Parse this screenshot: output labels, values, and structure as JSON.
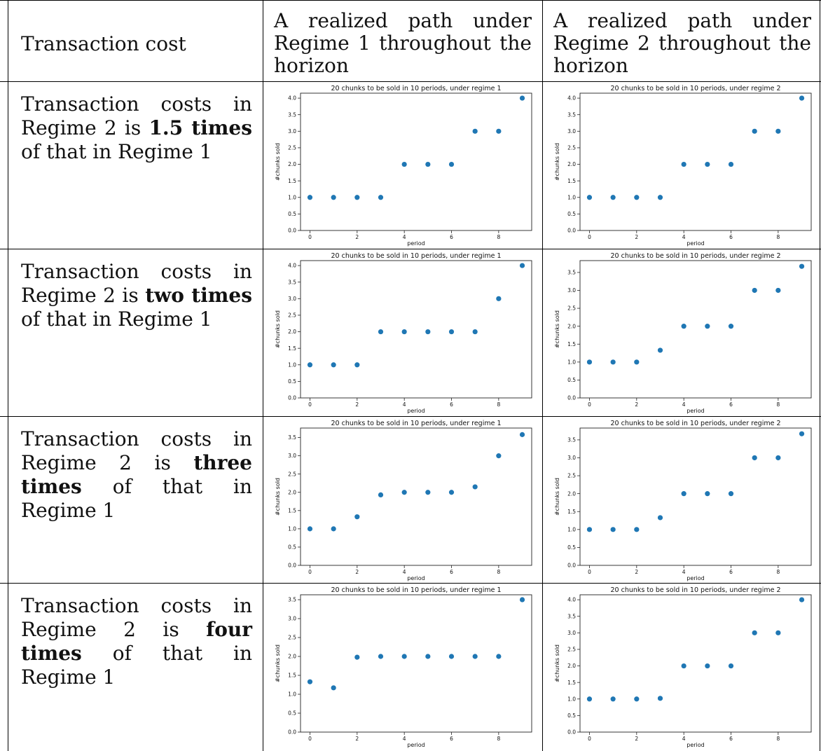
{
  "table": {
    "header": {
      "col1": "Transaction cost",
      "col2": "A realized path under Regime 1 throughout the horizon",
      "col3": "A realized path under Regime 2 throughout the horizon"
    },
    "rows": [
      {
        "prefix": "Transaction costs in",
        "middle": "Regime 2 is ",
        "bold": "1.5 times",
        "suffix": " of that in Regime 1"
      },
      {
        "prefix": "Transaction costs in",
        "middle": "Regime 2 is ",
        "bold": "two times",
        "suffix": " of that in Regime 1"
      },
      {
        "prefix": "Transaction costs in",
        "middle": "Regime 2 is ",
        "bold": "three times",
        "suffix": " of that in Regime 1"
      },
      {
        "prefix": "Transaction costs in",
        "middle": "Regime 2 is ",
        "bold": "four times",
        "suffix": " of that in Regime 1"
      }
    ]
  },
  "chart_data": [
    {
      "type": "scatter",
      "title": "20 chunks to be sold in 10 periods, under regime 1",
      "xlabel": "period",
      "ylabel": "#chunks sold",
      "x": [
        0,
        1,
        2,
        3,
        4,
        5,
        6,
        7,
        8,
        9
      ],
      "y": [
        1,
        1,
        1,
        1,
        2,
        2,
        2,
        3,
        3,
        4
      ],
      "xticks": [
        0,
        2,
        4,
        6,
        8
      ],
      "yticks": [
        0.0,
        0.5,
        1.0,
        1.5,
        2.0,
        2.5,
        3.0,
        3.5,
        4.0
      ],
      "xlim": [
        -0.4,
        9.4
      ],
      "ylim": [
        0,
        4.15
      ],
      "color": "#1f77b4"
    },
    {
      "type": "scatter",
      "title": "20 chunks to be sold in 10 periods, under regime 2",
      "xlabel": "period",
      "ylabel": "#chunks sold",
      "x": [
        0,
        1,
        2,
        3,
        4,
        5,
        6,
        7,
        8,
        9
      ],
      "y": [
        1,
        1,
        1,
        1,
        2,
        2,
        2,
        3,
        3,
        4
      ],
      "xticks": [
        0,
        2,
        4,
        6,
        8
      ],
      "yticks": [
        0.0,
        0.5,
        1.0,
        1.5,
        2.0,
        2.5,
        3.0,
        3.5,
        4.0
      ],
      "xlim": [
        -0.4,
        9.4
      ],
      "ylim": [
        0,
        4.15
      ],
      "color": "#1f77b4"
    },
    {
      "type": "scatter",
      "title": "20 chunks to be sold in 10 periods, under regime 1",
      "xlabel": "period",
      "ylabel": "#chunks sold",
      "x": [
        0,
        1,
        2,
        3,
        4,
        5,
        6,
        7,
        8,
        9
      ],
      "y": [
        1,
        1,
        1,
        2,
        2,
        2,
        2,
        2,
        3,
        4
      ],
      "xticks": [
        0,
        2,
        4,
        6,
        8
      ],
      "yticks": [
        0.0,
        0.5,
        1.0,
        1.5,
        2.0,
        2.5,
        3.0,
        3.5,
        4.0
      ],
      "xlim": [
        -0.4,
        9.4
      ],
      "ylim": [
        0,
        4.15
      ],
      "color": "#1f77b4"
    },
    {
      "type": "scatter",
      "title": "20 chunks to be sold in 10 periods, under regime 2",
      "xlabel": "period",
      "ylabel": "#chunks sold",
      "x": [
        0,
        1,
        2,
        3,
        4,
        5,
        6,
        7,
        8,
        9
      ],
      "y": [
        1,
        1,
        1,
        1.33,
        2,
        2,
        2,
        3,
        3,
        3.67
      ],
      "xticks": [
        0,
        2,
        4,
        6,
        8
      ],
      "yticks": [
        0.0,
        0.5,
        1.0,
        1.5,
        2.0,
        2.5,
        3.0,
        3.5
      ],
      "xlim": [
        -0.4,
        9.4
      ],
      "ylim": [
        0,
        3.83
      ],
      "color": "#1f77b4"
    },
    {
      "type": "scatter",
      "title": "20 chunks to be sold in 10 periods, under regime 1",
      "xlabel": "period",
      "ylabel": "#chunks sold",
      "x": [
        0,
        1,
        2,
        3,
        4,
        5,
        6,
        7,
        8,
        9
      ],
      "y": [
        1,
        1,
        1.33,
        1.93,
        2,
        2,
        2,
        2.15,
        3,
        3.58
      ],
      "xticks": [
        0,
        2,
        4,
        6,
        8
      ],
      "yticks": [
        0.0,
        0.5,
        1.0,
        1.5,
        2.0,
        2.5,
        3.0,
        3.5
      ],
      "xlim": [
        -0.4,
        9.4
      ],
      "ylim": [
        0,
        3.76
      ],
      "color": "#1f77b4"
    },
    {
      "type": "scatter",
      "title": "20 chunks to be sold in 10 periods, under regime 2",
      "xlabel": "period",
      "ylabel": "#chunks sold",
      "x": [
        0,
        1,
        2,
        3,
        4,
        5,
        6,
        7,
        8,
        9
      ],
      "y": [
        1,
        1,
        1,
        1.33,
        2,
        2,
        2,
        3,
        3,
        3.67
      ],
      "xticks": [
        0,
        2,
        4,
        6,
        8
      ],
      "yticks": [
        0.0,
        0.5,
        1.0,
        1.5,
        2.0,
        2.5,
        3.0,
        3.5
      ],
      "xlim": [
        -0.4,
        9.4
      ],
      "ylim": [
        0,
        3.83
      ],
      "color": "#1f77b4"
    },
    {
      "type": "scatter",
      "title": "20 chunks to be sold in 10 periods, under regime 1",
      "xlabel": "period",
      "ylabel": "#chunks sold",
      "x": [
        0,
        1,
        2,
        3,
        4,
        5,
        6,
        7,
        8,
        9
      ],
      "y": [
        1.33,
        1.17,
        1.98,
        2,
        2,
        2,
        2,
        2,
        2,
        3.5
      ],
      "xticks": [
        0,
        2,
        4,
        6,
        8
      ],
      "yticks": [
        0.0,
        0.5,
        1.0,
        1.5,
        2.0,
        2.5,
        3.0,
        3.5
      ],
      "xlim": [
        -0.4,
        9.4
      ],
      "ylim": [
        0,
        3.63
      ],
      "color": "#1f77b4"
    },
    {
      "type": "scatter",
      "title": "20 chunks to be sold in 10 periods, under regime 2",
      "xlabel": "period",
      "ylabel": "#chunks sold",
      "x": [
        0,
        1,
        2,
        3,
        4,
        5,
        6,
        7,
        8,
        9
      ],
      "y": [
        1,
        1,
        1,
        1.02,
        2,
        2,
        2,
        3,
        3,
        4
      ],
      "xticks": [
        0,
        2,
        4,
        6,
        8
      ],
      "yticks": [
        0.0,
        0.5,
        1.0,
        1.5,
        2.0,
        2.5,
        3.0,
        3.5,
        4.0
      ],
      "xlim": [
        -0.4,
        9.4
      ],
      "ylim": [
        0,
        4.15
      ],
      "color": "#1f77b4"
    }
  ]
}
